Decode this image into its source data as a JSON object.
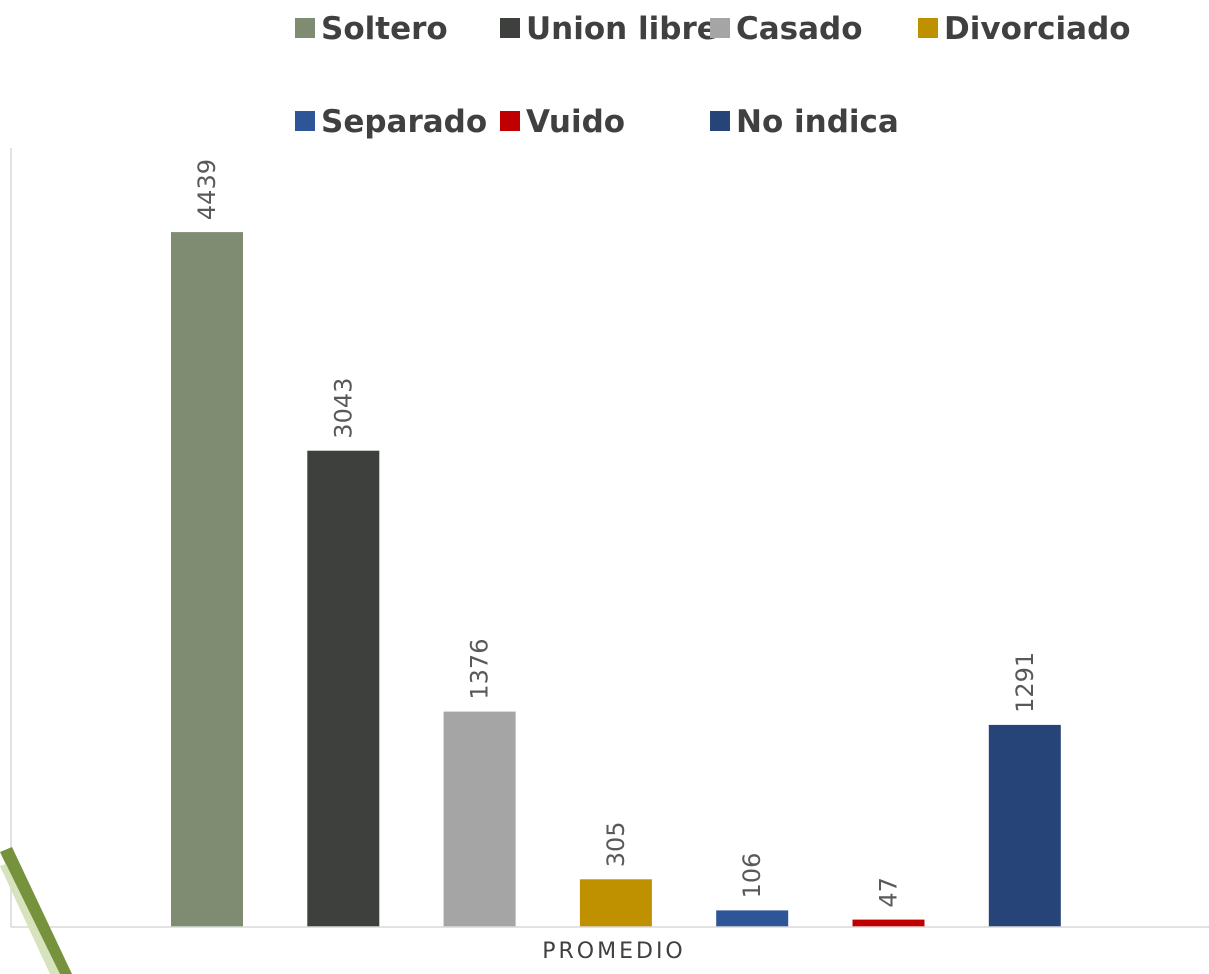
{
  "chart_data": {
    "type": "bar",
    "categories": [
      "PROMEDIO"
    ],
    "series": [
      {
        "name": "Soltero",
        "values": [
          4439
        ],
        "color": "#7f8c72"
      },
      {
        "name": "Union libre",
        "values": [
          3043
        ],
        "color": "#3e403d"
      },
      {
        "name": "Casado",
        "values": [
          1376
        ],
        "color": "#a5a5a5"
      },
      {
        "name": "Divorciado",
        "values": [
          305
        ],
        "color": "#bf9000"
      },
      {
        "name": "Separado",
        "values": [
          106
        ],
        "color": "#2e5597"
      },
      {
        "name": "Vuido",
        "values": [
          47
        ],
        "color": "#c00000"
      },
      {
        "name": "No indica",
        "values": [
          1291
        ],
        "color": "#264478"
      }
    ],
    "ylim": [
      0,
      5200
    ],
    "grid": false,
    "legend_position": "top",
    "data_labels": true,
    "data_label_rotation": "vertical",
    "xlabel": "",
    "ylabel": ""
  }
}
